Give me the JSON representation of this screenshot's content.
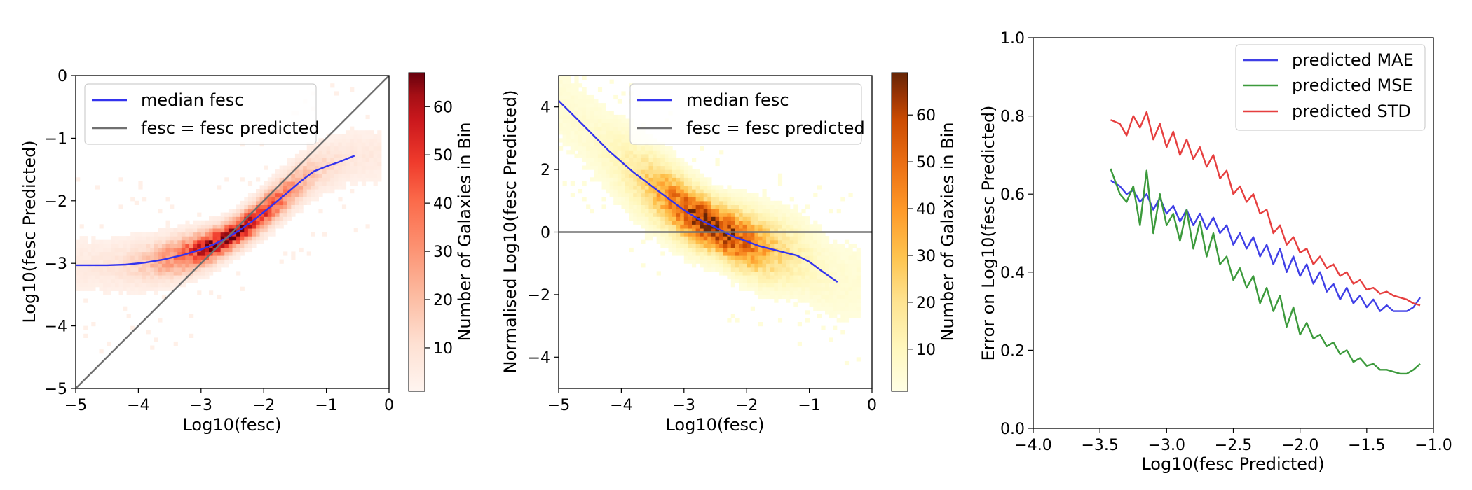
{
  "chart_data": [
    {
      "type": "heatmap",
      "colormap": "Reds",
      "xlabel": "Log10(fesc)",
      "ylabel": "Log10(fesc Predicted)",
      "xlim": [
        -5,
        0
      ],
      "ylim": [
        -5,
        0
      ],
      "xticks": [
        "−5",
        "−4",
        "−3",
        "−2",
        "−1",
        "0"
      ],
      "yticks": [
        "−5",
        "−4",
        "−3",
        "−2",
        "−1",
        "0"
      ],
      "colorbar": {
        "label": "Number of Galaxies in Bin",
        "min": 1,
        "max": 67,
        "ticks": [
          "10",
          "20",
          "30",
          "40",
          "50",
          "60"
        ]
      },
      "legend": {
        "position": "top-left",
        "entries": [
          "median fesc",
          "fesc = fesc predicted"
        ]
      },
      "series": [
        {
          "name": "median fesc",
          "color": "#3333ee",
          "x": [
            -5.0,
            -4.5,
            -4.2,
            -3.9,
            -3.6,
            -3.3,
            -3.0,
            -2.8,
            -2.6,
            -2.4,
            -2.2,
            -2.0,
            -1.8,
            -1.6,
            -1.4,
            -1.2,
            -1.0,
            -0.8,
            -0.55
          ],
          "y": [
            -3.03,
            -3.03,
            -3.02,
            -2.99,
            -2.94,
            -2.87,
            -2.78,
            -2.7,
            -2.6,
            -2.48,
            -2.34,
            -2.18,
            -2.02,
            -1.85,
            -1.68,
            -1.53,
            -1.45,
            -1.38,
            -1.28
          ]
        },
        {
          "name": "fesc = fesc predicted",
          "color": "#707070",
          "x": [
            -5,
            0
          ],
          "y": [
            -5,
            0
          ]
        }
      ],
      "density": {
        "center_slope": 0.78,
        "center_intercept": -0.55,
        "spread": 0.42,
        "peak_x": -2.6
      }
    },
    {
      "type": "heatmap",
      "colormap": "YlOrBr",
      "xlabel": "Log10(fesc)",
      "ylabel": "Normalised Log10(fesc Predicted)",
      "xlim": [
        -5,
        0
      ],
      "ylim": [
        -5,
        5
      ],
      "xticks": [
        "−5",
        "−4",
        "−3",
        "−2",
        "−1",
        "0"
      ],
      "yticks": [
        "−4",
        "−2",
        "0",
        "2",
        "4"
      ],
      "colorbar": {
        "label": "Number of Galaxies in Bin",
        "min": 1,
        "max": 69,
        "ticks": [
          "10",
          "20",
          "30",
          "40",
          "50",
          "60"
        ]
      },
      "legend": {
        "position": "top-right",
        "entries": [
          "median fesc",
          "fesc = fesc predicted"
        ]
      },
      "series": [
        {
          "name": "median fesc",
          "color": "#3333ee",
          "x": [
            -5.0,
            -4.6,
            -4.2,
            -3.8,
            -3.4,
            -3.0,
            -2.8,
            -2.6,
            -2.4,
            -2.2,
            -2.0,
            -1.8,
            -1.6,
            -1.4,
            -1.2,
            -1.0,
            -0.8,
            -0.55
          ],
          "y": [
            4.2,
            3.4,
            2.6,
            1.9,
            1.3,
            0.7,
            0.45,
            0.25,
            0.05,
            -0.15,
            -0.3,
            -0.45,
            -0.55,
            -0.65,
            -0.75,
            -0.95,
            -1.25,
            -1.6
          ]
        },
        {
          "name": "fesc = fesc predicted",
          "color": "#707070",
          "x": [
            -5,
            0
          ],
          "y": [
            0,
            0
          ]
        }
      ]
    },
    {
      "type": "line",
      "xlabel": "Log10(fesc Predicted)",
      "ylabel": "Error on Log10(fesc Predicted)",
      "xlim": [
        -4.0,
        -1.0
      ],
      "ylim": [
        0.0,
        1.0
      ],
      "xticks": [
        "−4.0",
        "−3.5",
        "−3.0",
        "−2.5",
        "−2.0",
        "−1.5",
        "−1.0"
      ],
      "yticks": [
        "0.0",
        "0.2",
        "0.4",
        "0.6",
        "0.8",
        "1.0"
      ],
      "legend": {
        "position": "top-right",
        "entries": [
          "predicted MAE",
          "predicted MSE",
          "predicted STD"
        ]
      },
      "series": [
        {
          "name": "predicted MAE",
          "color": "#3f3fe6",
          "x": [
            -3.42,
            -3.35,
            -3.3,
            -3.25,
            -3.2,
            -3.15,
            -3.1,
            -3.05,
            -3.0,
            -2.95,
            -2.9,
            -2.85,
            -2.8,
            -2.75,
            -2.7,
            -2.65,
            -2.6,
            -2.55,
            -2.5,
            -2.45,
            -2.4,
            -2.35,
            -2.3,
            -2.25,
            -2.2,
            -2.15,
            -2.1,
            -2.05,
            -2.0,
            -1.95,
            -1.9,
            -1.85,
            -1.8,
            -1.75,
            -1.7,
            -1.65,
            -1.6,
            -1.55,
            -1.5,
            -1.45,
            -1.4,
            -1.35,
            -1.3,
            -1.25,
            -1.2,
            -1.15,
            -1.1
          ],
          "y": [
            0.635,
            0.62,
            0.6,
            0.61,
            0.58,
            0.6,
            0.56,
            0.59,
            0.55,
            0.57,
            0.53,
            0.56,
            0.52,
            0.55,
            0.51,
            0.54,
            0.5,
            0.52,
            0.47,
            0.5,
            0.46,
            0.49,
            0.44,
            0.47,
            0.42,
            0.46,
            0.4,
            0.44,
            0.39,
            0.42,
            0.37,
            0.4,
            0.35,
            0.37,
            0.33,
            0.36,
            0.32,
            0.34,
            0.31,
            0.33,
            0.3,
            0.315,
            0.3,
            0.3,
            0.3,
            0.31,
            0.335
          ]
        },
        {
          "name": "predicted MSE",
          "color": "#3c9a3c",
          "x": [
            -3.42,
            -3.35,
            -3.3,
            -3.25,
            -3.2,
            -3.15,
            -3.1,
            -3.05,
            -3.0,
            -2.95,
            -2.9,
            -2.85,
            -2.8,
            -2.75,
            -2.7,
            -2.65,
            -2.6,
            -2.55,
            -2.5,
            -2.45,
            -2.4,
            -2.35,
            -2.3,
            -2.25,
            -2.2,
            -2.15,
            -2.1,
            -2.05,
            -2.0,
            -1.95,
            -1.9,
            -1.85,
            -1.8,
            -1.75,
            -1.7,
            -1.65,
            -1.6,
            -1.55,
            -1.5,
            -1.45,
            -1.4,
            -1.35,
            -1.3,
            -1.25,
            -1.2,
            -1.15,
            -1.1
          ],
          "y": [
            0.665,
            0.6,
            0.58,
            0.62,
            0.52,
            0.66,
            0.5,
            0.6,
            0.52,
            0.55,
            0.48,
            0.56,
            0.46,
            0.53,
            0.44,
            0.5,
            0.42,
            0.44,
            0.38,
            0.41,
            0.36,
            0.39,
            0.32,
            0.36,
            0.3,
            0.34,
            0.26,
            0.31,
            0.24,
            0.27,
            0.23,
            0.24,
            0.21,
            0.22,
            0.19,
            0.2,
            0.17,
            0.18,
            0.16,
            0.165,
            0.15,
            0.15,
            0.145,
            0.14,
            0.14,
            0.15,
            0.165
          ]
        },
        {
          "name": "predicted STD",
          "color": "#e63f3f",
          "x": [
            -3.42,
            -3.35,
            -3.3,
            -3.25,
            -3.2,
            -3.15,
            -3.1,
            -3.05,
            -3.0,
            -2.95,
            -2.9,
            -2.85,
            -2.8,
            -2.75,
            -2.7,
            -2.65,
            -2.6,
            -2.55,
            -2.5,
            -2.45,
            -2.4,
            -2.35,
            -2.3,
            -2.25,
            -2.2,
            -2.15,
            -2.1,
            -2.05,
            -2.0,
            -1.95,
            -1.9,
            -1.85,
            -1.8,
            -1.75,
            -1.7,
            -1.65,
            -1.6,
            -1.55,
            -1.5,
            -1.45,
            -1.4,
            -1.35,
            -1.3,
            -1.25,
            -1.2,
            -1.15,
            -1.1
          ],
          "y": [
            0.79,
            0.78,
            0.75,
            0.8,
            0.77,
            0.81,
            0.74,
            0.78,
            0.72,
            0.76,
            0.7,
            0.74,
            0.69,
            0.72,
            0.67,
            0.7,
            0.64,
            0.66,
            0.6,
            0.62,
            0.58,
            0.6,
            0.55,
            0.56,
            0.5,
            0.52,
            0.47,
            0.49,
            0.45,
            0.46,
            0.42,
            0.44,
            0.41,
            0.42,
            0.39,
            0.4,
            0.37,
            0.38,
            0.355,
            0.36,
            0.345,
            0.35,
            0.34,
            0.335,
            0.33,
            0.32,
            0.315
          ]
        }
      ]
    }
  ]
}
